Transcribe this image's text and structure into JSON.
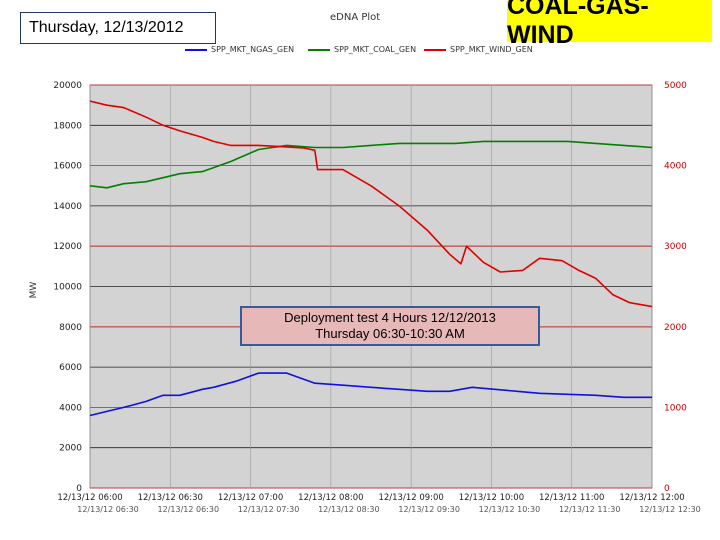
{
  "header": {
    "date_label": "Thursday, 12/13/2012",
    "plot_title": "eDNA Plot",
    "badge_text": "COAL-GAS-WIND",
    "badge_color": "#ffff00"
  },
  "annotation": {
    "line1": "Deployment test  4 Hours  12/12/2013",
    "line2": "Thursday  06:30-10:30  AM"
  },
  "chart_data": {
    "type": "line",
    "title": "eDNA Plot",
    "ylabel": "MW",
    "ylim": [
      0,
      20000
    ],
    "y2lim": [
      0,
      5000
    ],
    "y_ticks": [
      "20000",
      "18000",
      "16000",
      "14000",
      "12000",
      "10000",
      "8000",
      "6000",
      "4000",
      "2000",
      "0"
    ],
    "y2_ticks": [
      "5000",
      "4000",
      "3000",
      "2000",
      "1000",
      "0"
    ],
    "x_ticks_top": [
      "12/13/12 06:00",
      "12/13/12 06:30",
      "12/13/12 07:00",
      "12/13/12 08:00",
      "12/13/12 09:00",
      "12/13/12 10:00",
      "12/13/12 11:00",
      "12/13/12 12:00"
    ],
    "x_ticks_bottom": [
      "12/13/12 06:30",
      "12/13/12 06:30",
      "12/13/12 07:30",
      "12/13/12 08:30",
      "12/13/12 09:30",
      "12/13/12 10:30",
      "12/13/12 11:30",
      "12/13/12 12:30"
    ],
    "series": [
      {
        "name": "SPP_MKT_NGAS_GEN",
        "color": "#1010e0",
        "axis": "left",
        "x": [
          0,
          0.03,
          0.06,
          0.1,
          0.13,
          0.16,
          0.2,
          0.22,
          0.26,
          0.3,
          0.35,
          0.4,
          0.45,
          0.5,
          0.55,
          0.6,
          0.64,
          0.68,
          0.72,
          0.76,
          0.8,
          0.85,
          0.9,
          0.95,
          1
        ],
        "values": [
          3600,
          3800,
          4000,
          4300,
          4600,
          4600,
          4900,
          5000,
          5300,
          5700,
          5700,
          5200,
          5100,
          5000,
          4900,
          4800,
          4800,
          5000,
          4900,
          4800,
          4700,
          4650,
          4600,
          4500,
          4500
        ]
      },
      {
        "name": "SPP_MKT_COAL_GEN",
        "color": "#008000",
        "axis": "left",
        "x": [
          0,
          0.03,
          0.06,
          0.1,
          0.13,
          0.16,
          0.2,
          0.25,
          0.3,
          0.35,
          0.4,
          0.45,
          0.5,
          0.55,
          0.6,
          0.65,
          0.7,
          0.75,
          0.8,
          0.85,
          0.9,
          0.95,
          1
        ],
        "values": [
          15000,
          14900,
          15100,
          15200,
          15400,
          15600,
          15700,
          16200,
          16800,
          17000,
          16900,
          16900,
          17000,
          17100,
          17100,
          17100,
          17200,
          17200,
          17200,
          17200,
          17100,
          17000,
          16900
        ]
      },
      {
        "name": "SPP_MKT_WIND_GEN",
        "color": "#e00000",
        "axis": "right",
        "x": [
          0,
          0.03,
          0.06,
          0.1,
          0.13,
          0.16,
          0.2,
          0.22,
          0.25,
          0.3,
          0.33,
          0.38,
          0.4,
          0.405,
          0.45,
          0.5,
          0.55,
          0.6,
          0.64,
          0.66,
          0.67,
          0.7,
          0.73,
          0.77,
          0.8,
          0.84,
          0.87,
          0.9,
          0.93,
          0.96,
          1
        ],
        "values": [
          4800,
          4750,
          4720,
          4600,
          4500,
          4430,
          4350,
          4300,
          4250,
          4250,
          4240,
          4220,
          4190,
          3950,
          3950,
          3750,
          3500,
          3200,
          2900,
          2780,
          3000,
          2800,
          2680,
          2700,
          2850,
          2820,
          2700,
          2600,
          2400,
          2300,
          2250
        ]
      }
    ]
  }
}
